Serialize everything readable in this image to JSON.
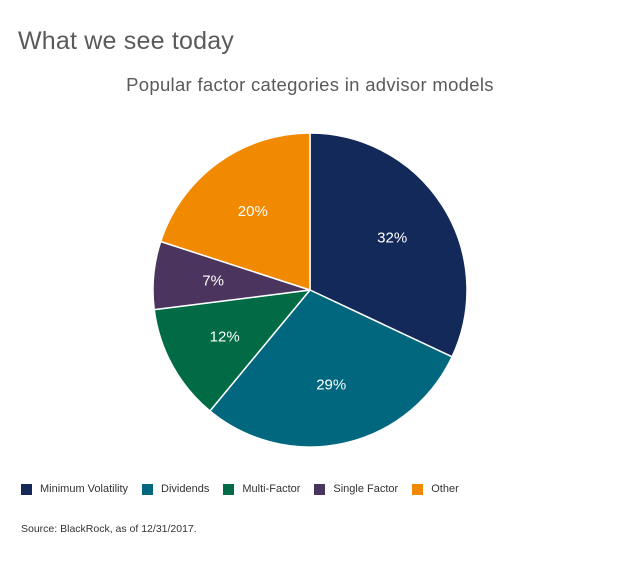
{
  "header": {
    "title": "What we see today"
  },
  "chart_data": {
    "type": "pie",
    "title": "Popular factor categories in advisor models",
    "slices": [
      {
        "label": "Minimum Volatility",
        "value": 32,
        "display": "32%",
        "color": "#12295a"
      },
      {
        "label": "Dividends",
        "value": 29,
        "display": "29%",
        "color": "#00677f"
      },
      {
        "label": "Multi-Factor",
        "value": 12,
        "display": "12%",
        "color": "#006b45"
      },
      {
        "label": "Single Factor",
        "value": 7,
        "display": "7%",
        "color": "#4b355e"
      },
      {
        "label": "Other",
        "value": 20,
        "display": "20%",
        "color": "#f18a00"
      }
    ],
    "legend_position": "bottom-left"
  },
  "footer": {
    "source": "Source: BlackRock, as of 12/31/2017."
  }
}
